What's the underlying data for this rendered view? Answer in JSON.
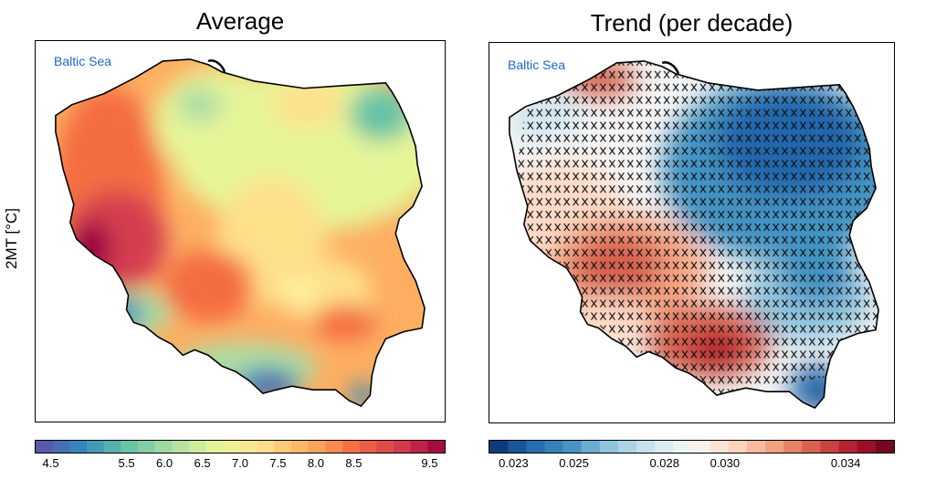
{
  "figure": {
    "y_label": "2MT [°C]",
    "panels": [
      {
        "id": "average",
        "title": "Average",
        "sea_label": "Baltic Sea",
        "colormap": "Spectral_r",
        "colorbar": {
          "min": 4.3,
          "max": 9.7,
          "ticks": [
            {
              "value": 4.5,
              "label": "4.5"
            },
            {
              "value": 5.5,
              "label": "5.5"
            },
            {
              "value": 6.0,
              "label": "6.0"
            },
            {
              "value": 6.5,
              "label": "6.5"
            },
            {
              "value": 7.0,
              "label": "7.0"
            },
            {
              "value": 7.5,
              "label": "7.5"
            },
            {
              "value": 8.0,
              "label": "8.0"
            },
            {
              "value": 8.5,
              "label": "8.5"
            },
            {
              "value": 9.5,
              "label": "9.5"
            }
          ],
          "colors": [
            "#5e4fa2",
            "#3288bd",
            "#66c2a5",
            "#abdda4",
            "#e6f598",
            "#fee08b",
            "#fdae61",
            "#f46d43",
            "#d53e4f",
            "#9e0142"
          ]
        }
      },
      {
        "id": "trend",
        "title": "Trend (per decade)",
        "sea_label": "Baltic Sea",
        "colormap": "RdBu_r",
        "hatching": "significance crosses",
        "colorbar": {
          "min": 0.0222,
          "max": 0.0356,
          "ticks": [
            {
              "value": 0.023,
              "label": "0.023"
            },
            {
              "value": 0.025,
              "label": "0.025"
            },
            {
              "value": 0.028,
              "label": "0.028"
            },
            {
              "value": 0.03,
              "label": "0.030"
            },
            {
              "value": 0.034,
              "label": "0.034"
            }
          ],
          "colors": [
            "#08306b",
            "#2166ac",
            "#4393c3",
            "#92c5de",
            "#d1e5f0",
            "#f7f7f7",
            "#fddbc7",
            "#f4a582",
            "#d6604d",
            "#b2182b",
            "#67001f"
          ]
        }
      }
    ]
  }
}
